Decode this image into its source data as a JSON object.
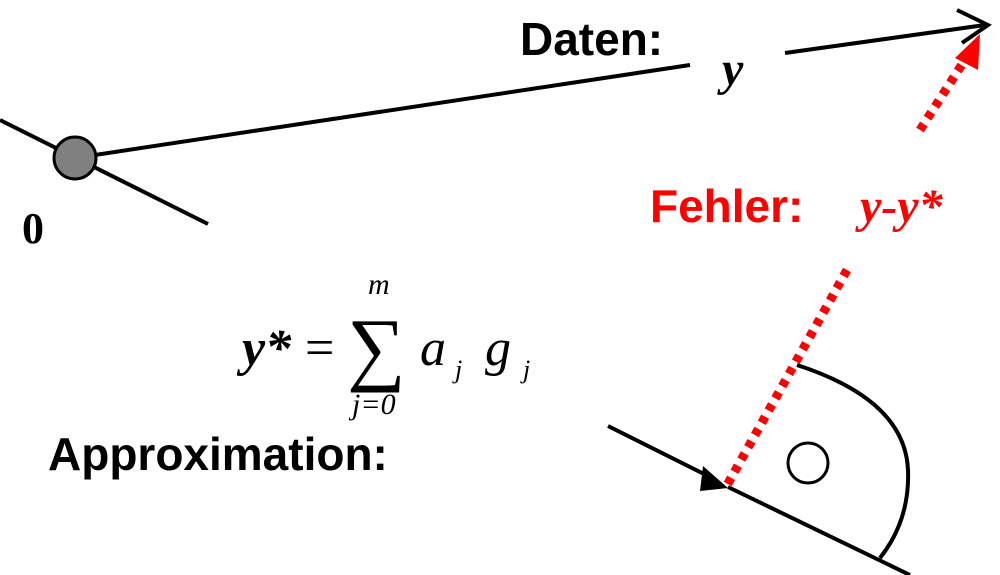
{
  "labels": {
    "origin": "0",
    "data_label": "Daten:",
    "data_symbol": "y",
    "error_label": "Fehler:",
    "error_expr": "y-y*",
    "approx_label": "Approximation:"
  },
  "formula": {
    "lhs": "y*",
    "equals": "=",
    "sum": "∑",
    "upper": "m",
    "lower": "j=0",
    "coef": "a",
    "coef_sub": "j",
    "basis": "g",
    "basis_sub": "j"
  },
  "colors": {
    "line": "#000000",
    "error": "#ff0000",
    "origin_dot": "#808080"
  },
  "icons": {
    "right_angle_marker": "circle-dot-icon",
    "origin_point": "filled-circle-icon",
    "arrowhead": "arrow-icon"
  }
}
